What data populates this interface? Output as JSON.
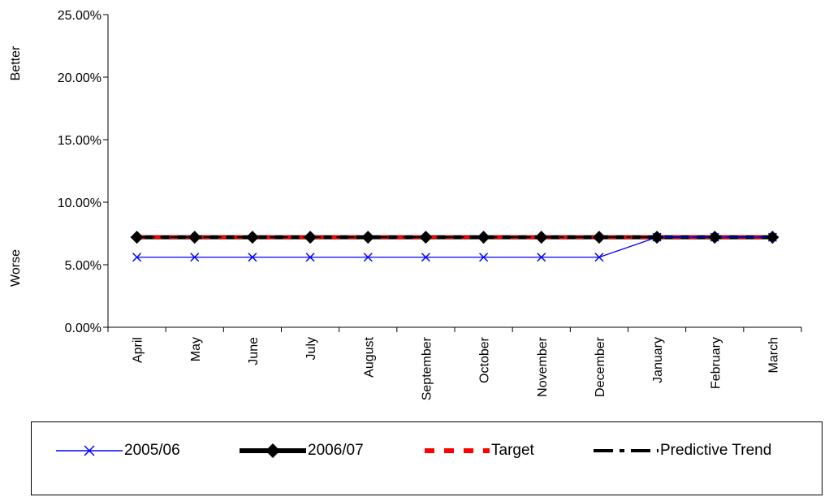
{
  "chart_data": {
    "type": "line",
    "categories": [
      "April",
      "May",
      "June",
      "July",
      "August",
      "September",
      "October",
      "November",
      "December",
      "January",
      "February",
      "March"
    ],
    "ylim": [
      0,
      0.25
    ],
    "yticks": [
      "0.00%",
      "5.00%",
      "10.00%",
      "15.00%",
      "20.00%",
      "25.00%"
    ],
    "ytick_values": [
      0,
      0.05,
      0.1,
      0.15,
      0.2,
      0.25
    ],
    "side_labels": {
      "better": "Better",
      "worse": "Worse"
    },
    "series": [
      {
        "name": "2005/06",
        "values": [
          0.056,
          0.056,
          0.056,
          0.056,
          0.056,
          0.056,
          0.056,
          0.056,
          0.056,
          0.072,
          0.072,
          0.072
        ],
        "color": "#0000FF",
        "marker": "x",
        "style": "solid-thin"
      },
      {
        "name": "2006/07",
        "values": [
          0.072,
          0.072,
          0.072,
          0.072,
          0.072,
          0.072,
          0.072,
          0.072,
          0.072,
          0.072,
          0.072,
          0.072
        ],
        "color": "#000000",
        "marker": "diamond",
        "style": "solid-thick"
      },
      {
        "name": "Target",
        "values": [
          0.072,
          0.072,
          0.072,
          0.072,
          0.072,
          0.072,
          0.072,
          0.072,
          0.072,
          0.072,
          0.072,
          0.072
        ],
        "color": "#FF0000",
        "marker": "none",
        "style": "dashed"
      },
      {
        "name": "Predictive Trend",
        "values": [
          0.072,
          0.072,
          0.072,
          0.072,
          0.072,
          0.072,
          0.072,
          0.072,
          0.072,
          0.072,
          0.072,
          0.072
        ],
        "color": "#000000",
        "marker": "none",
        "style": "dash-dot"
      }
    ],
    "grid": false,
    "legend_position": "bottom"
  }
}
